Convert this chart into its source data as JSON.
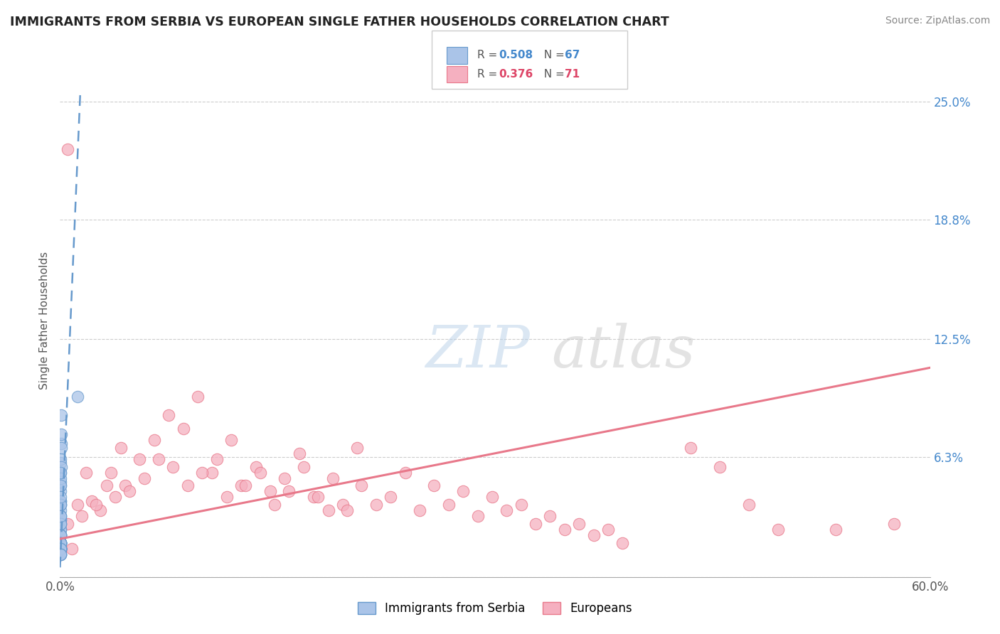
{
  "title": "IMMIGRANTS FROM SERBIA VS EUROPEAN SINGLE FATHER HOUSEHOLDS CORRELATION CHART",
  "source": "Source: ZipAtlas.com",
  "ylabel": "Single Father Households",
  "right_yticks": [
    0.0,
    0.063,
    0.125,
    0.188,
    0.25
  ],
  "right_yticklabels": [
    "",
    "6.3%",
    "12.5%",
    "18.8%",
    "25.0%"
  ],
  "legend_label1": "Immigrants from Serbia",
  "legend_label2": "Europeans",
  "color_blue": "#aac4e8",
  "color_pink": "#f5b0c0",
  "color_blue_dark": "#6699cc",
  "color_pink_dark": "#e8788a",
  "color_r1": "#4488cc",
  "color_r2": "#dd4466",
  "xmin": 0.0,
  "xmax": 0.6,
  "ymin": 0.0,
  "ymax": 0.27,
  "blue_scatter_x": [
    0.0002,
    0.0003,
    0.0004,
    0.0005,
    0.0003,
    0.0006,
    0.0002,
    0.0004,
    0.0005,
    0.0002,
    0.0003,
    0.0007,
    0.0004,
    0.0002,
    0.0004,
    0.0008,
    0.0006,
    0.0004,
    0.0003,
    0.0002,
    0.0003,
    0.0004,
    0.0002,
    0.0005,
    0.0004,
    0.0002,
    0.0004,
    0.0003,
    0.0002,
    0.0004,
    0.0005,
    0.0002,
    0.0007,
    0.0002,
    0.0004,
    0.0003,
    0.0005,
    0.0002,
    0.0004,
    0.0003,
    0.0002,
    0.0004,
    0.0002,
    0.0002,
    0.0004,
    0.0002,
    0.0002,
    0.0003,
    0.0002,
    0.0002,
    0.0002,
    0.0003,
    0.0002,
    0.0002,
    0.0002,
    0.0002,
    0.0005,
    0.0002,
    0.0002,
    0.0002,
    0.0002,
    0.0002,
    0.0002,
    0.0002,
    0.012,
    0.0002,
    0.0002
  ],
  "blue_scatter_y": [
    0.03,
    0.045,
    0.06,
    0.055,
    0.038,
    0.07,
    0.025,
    0.048,
    0.062,
    0.028,
    0.022,
    0.075,
    0.04,
    0.018,
    0.05,
    0.085,
    0.058,
    0.035,
    0.025,
    0.018,
    0.022,
    0.04,
    0.018,
    0.052,
    0.032,
    0.015,
    0.038,
    0.022,
    0.015,
    0.03,
    0.048,
    0.018,
    0.068,
    0.015,
    0.038,
    0.022,
    0.055,
    0.018,
    0.032,
    0.022,
    0.015,
    0.028,
    0.018,
    0.015,
    0.028,
    0.018,
    0.015,
    0.032,
    0.015,
    0.018,
    0.015,
    0.022,
    0.018,
    0.015,
    0.018,
    0.015,
    0.042,
    0.015,
    0.018,
    0.012,
    0.015,
    0.012,
    0.015,
    0.012,
    0.095,
    0.012,
    0.012
  ],
  "pink_scatter_x": [
    0.005,
    0.008,
    0.012,
    0.018,
    0.022,
    0.028,
    0.032,
    0.038,
    0.042,
    0.005,
    0.015,
    0.025,
    0.035,
    0.045,
    0.055,
    0.065,
    0.075,
    0.085,
    0.095,
    0.105,
    0.115,
    0.125,
    0.135,
    0.145,
    0.155,
    0.165,
    0.175,
    0.185,
    0.195,
    0.205,
    0.048,
    0.058,
    0.068,
    0.078,
    0.088,
    0.098,
    0.108,
    0.118,
    0.128,
    0.138,
    0.148,
    0.158,
    0.168,
    0.178,
    0.188,
    0.198,
    0.208,
    0.218,
    0.228,
    0.238,
    0.248,
    0.258,
    0.268,
    0.278,
    0.288,
    0.298,
    0.308,
    0.318,
    0.328,
    0.338,
    0.348,
    0.358,
    0.368,
    0.378,
    0.388,
    0.435,
    0.455,
    0.475,
    0.495,
    0.535,
    0.575
  ],
  "pink_scatter_y": [
    0.225,
    0.015,
    0.038,
    0.055,
    0.04,
    0.035,
    0.048,
    0.042,
    0.068,
    0.028,
    0.032,
    0.038,
    0.055,
    0.048,
    0.062,
    0.072,
    0.085,
    0.078,
    0.095,
    0.055,
    0.042,
    0.048,
    0.058,
    0.045,
    0.052,
    0.065,
    0.042,
    0.035,
    0.038,
    0.068,
    0.045,
    0.052,
    0.062,
    0.058,
    0.048,
    0.055,
    0.062,
    0.072,
    0.048,
    0.055,
    0.038,
    0.045,
    0.058,
    0.042,
    0.052,
    0.035,
    0.048,
    0.038,
    0.042,
    0.055,
    0.035,
    0.048,
    0.038,
    0.045,
    0.032,
    0.042,
    0.035,
    0.038,
    0.028,
    0.032,
    0.025,
    0.028,
    0.022,
    0.025,
    0.018,
    0.068,
    0.058,
    0.038,
    0.025,
    0.025,
    0.028
  ],
  "blue_trendline_x": [
    0.0,
    0.014
  ],
  "blue_trendline_y": [
    0.005,
    0.255
  ],
  "pink_trendline_x": [
    0.0,
    0.6
  ],
  "pink_trendline_y": [
    0.02,
    0.11
  ]
}
